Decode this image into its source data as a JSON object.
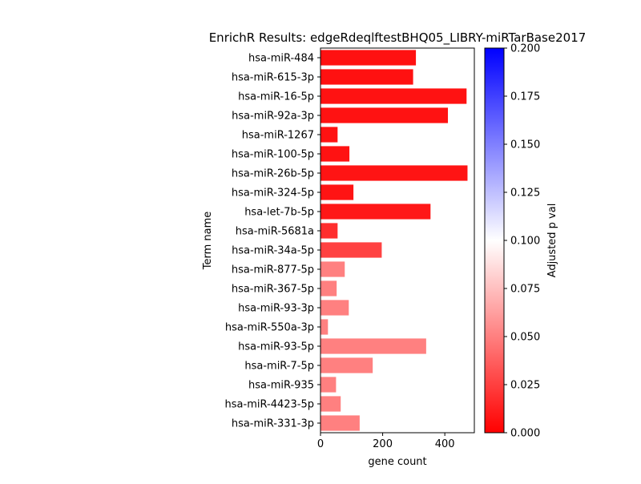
{
  "chart_data": {
    "type": "bar",
    "orientation": "horizontal",
    "title": "EnrichR Results: edgeRdeqlftestBHQ05_LIBRY-miRTarBase2017",
    "xlabel": "gene count",
    "ylabel": "Term name",
    "xlim": [
      0,
      495
    ],
    "xticks": [
      "0",
      "200",
      "400"
    ],
    "xtick_values": [
      0,
      200,
      400
    ],
    "categories": [
      "hsa-miR-484",
      "hsa-miR-615-3p",
      "hsa-miR-16-5p",
      "hsa-miR-92a-3p",
      "hsa-miR-1267",
      "hsa-miR-100-5p",
      "hsa-miR-26b-5p",
      "hsa-miR-324-5p",
      "hsa-let-7b-5p",
      "hsa-miR-5681a",
      "hsa-miR-34a-5p",
      "hsa-miR-877-5p",
      "hsa-miR-367-5p",
      "hsa-miR-93-3p",
      "hsa-miR-550a-3p",
      "hsa-miR-93-5p",
      "hsa-miR-7-5p",
      "hsa-miR-935",
      "hsa-miR-4423-5p",
      "hsa-miR-331-3p"
    ],
    "values": [
      307,
      298,
      470,
      410,
      55,
      93,
      473,
      106,
      354,
      55,
      197,
      78,
      52,
      91,
      24,
      340,
      168,
      50,
      65,
      126
    ],
    "adjusted_p": [
      0.0065,
      0.0065,
      0.0072,
      0.0072,
      0.0072,
      0.0072,
      0.008,
      0.008,
      0.009,
      0.018,
      0.026,
      0.05,
      0.05,
      0.05,
      0.05,
      0.05,
      0.05,
      0.05,
      0.05,
      0.05
    ],
    "grid": false,
    "colorbar": {
      "label": "Adjusted p val",
      "range": [
        0,
        0.2
      ],
      "ticks": [
        "0.000",
        "0.025",
        "0.050",
        "0.075",
        "0.100",
        "0.125",
        "0.150",
        "0.175",
        "0.200"
      ],
      "colors": [
        "#ff0000",
        "#ffffff",
        "#0000ff"
      ]
    }
  }
}
